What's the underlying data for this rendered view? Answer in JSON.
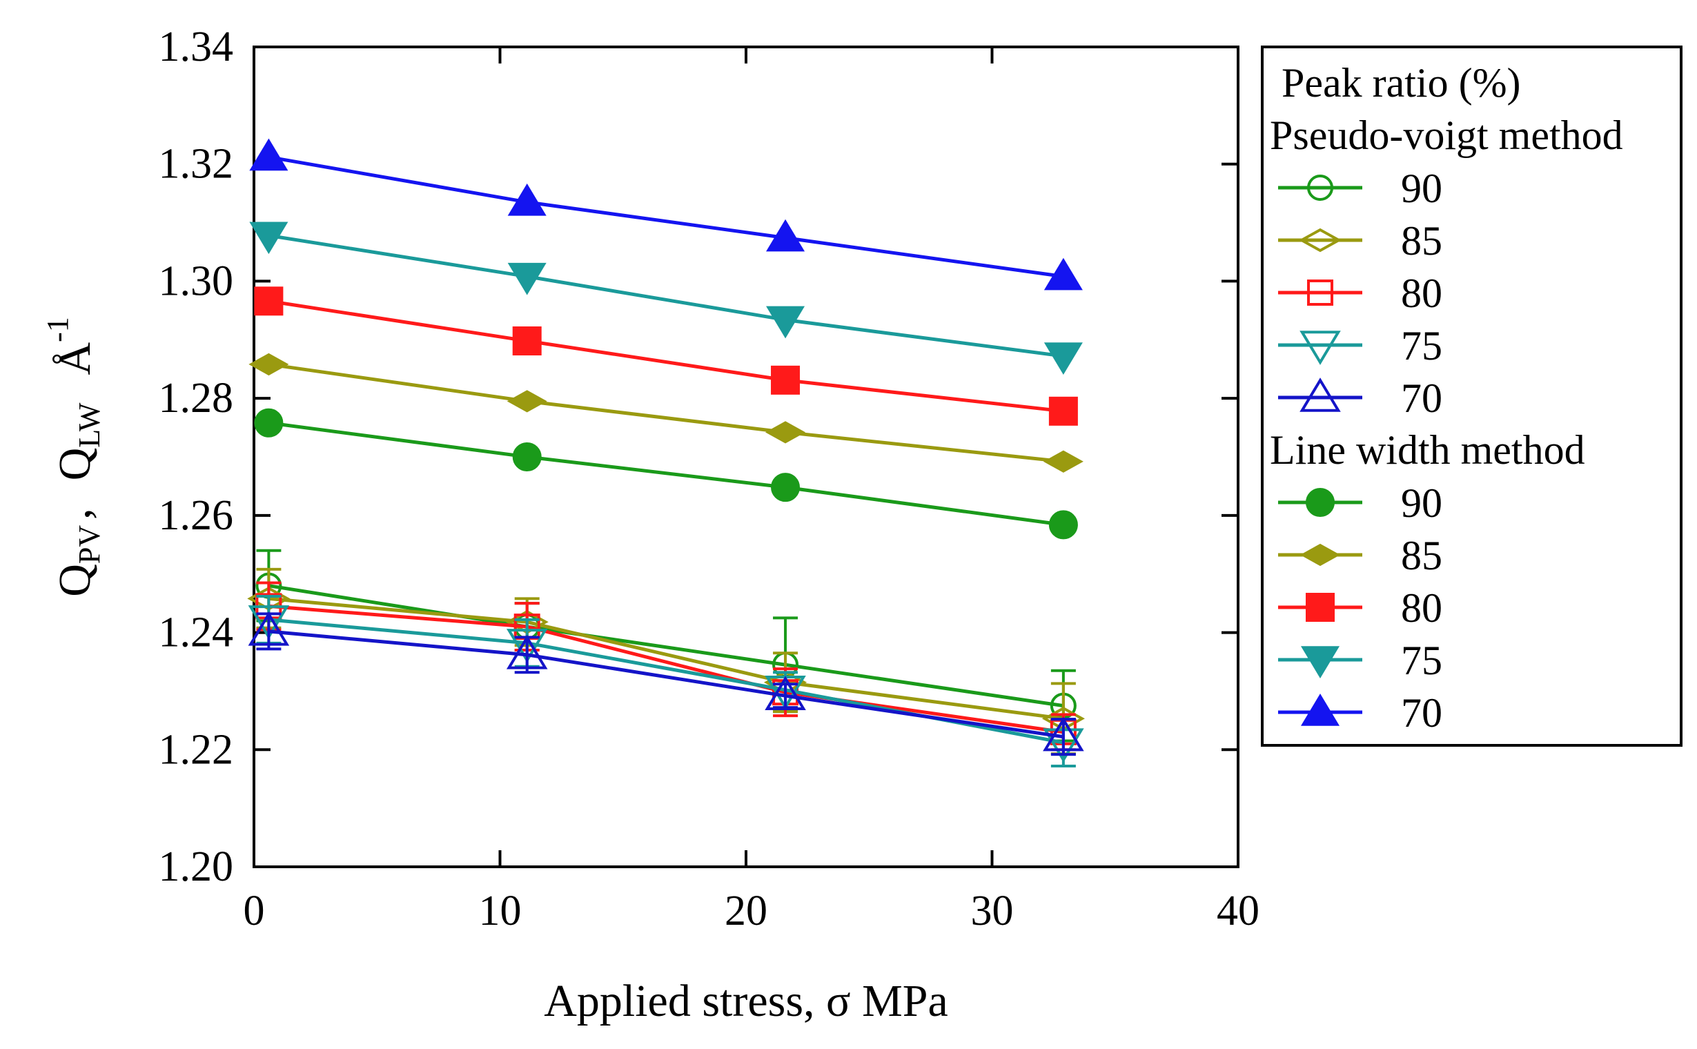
{
  "chart_data": {
    "type": "line",
    "title": "",
    "xlabel": "Applied stress, σ MPa",
    "ylabel": {
      "q1": "Q",
      "q1_sub": "PV",
      "comma": ",",
      "q2": "Q",
      "q2_sub": "LW",
      "unit": "Å",
      "unit_sup": "-1"
    },
    "xlim": [
      0,
      40
    ],
    "ylim": [
      1.2,
      1.34
    ],
    "xticks": [
      0,
      10,
      20,
      30,
      40
    ],
    "xtick_labels": [
      "0",
      "10",
      "20",
      "30",
      "40"
    ],
    "yticks": [
      1.2,
      1.22,
      1.24,
      1.26,
      1.28,
      1.3,
      1.32,
      1.34
    ],
    "ytick_labels": [
      "1.20",
      "1.22",
      "1.24",
      "1.26",
      "1.28",
      "1.30",
      "1.32",
      "1.34"
    ],
    "grid": false,
    "legend_position": "right-outside",
    "x": [
      0.6,
      11.1,
      21.6,
      32.9
    ],
    "legend": {
      "title": "Peak ratio (%)",
      "group1": "Pseudo-voigt method",
      "group2": "Line width method"
    },
    "series": [
      {
        "name": "90",
        "method": "Pseudo-voigt method",
        "marker": "circle-open",
        "color": "#1a9a1a",
        "values": [
          1.248,
          1.241,
          1.2345,
          1.2275
        ],
        "errors": [
          0.006,
          0.004,
          0.008,
          0.006
        ]
      },
      {
        "name": "85",
        "method": "Pseudo-voigt method",
        "marker": "diamond-open",
        "color": "#9a9a10",
        "values": [
          1.2458,
          1.2418,
          1.2315,
          1.2253
        ],
        "errors": [
          0.005,
          0.004,
          0.005,
          0.006
        ]
      },
      {
        "name": "80",
        "method": "Pseudo-voigt method",
        "marker": "square-open",
        "color": "#ff1a1a",
        "values": [
          1.2445,
          1.241,
          1.2298,
          1.223
        ],
        "errors": [
          0.004,
          0.004,
          0.004,
          0.003
        ]
      },
      {
        "name": "75",
        "method": "Pseudo-voigt method",
        "marker": "triangle-down-open",
        "color": "#1a9a9a",
        "values": [
          1.2422,
          1.2382,
          1.2302,
          1.2212
        ],
        "errors": [
          0.004,
          0.004,
          0.003,
          0.004
        ]
      },
      {
        "name": "70",
        "method": "Pseudo-voigt method",
        "marker": "triangle-up-open",
        "color": "#1414c8",
        "values": [
          1.2402,
          1.2362,
          1.2292,
          1.2222
        ],
        "errors": [
          0.003,
          0.003,
          0.002,
          0.003
        ]
      },
      {
        "name": "90",
        "method": "Line width method",
        "marker": "circle",
        "color": "#1a9a1a",
        "values": [
          1.2758,
          1.27,
          1.2648,
          1.2584
        ],
        "errors": []
      },
      {
        "name": "85",
        "method": "Line width method",
        "marker": "diamond",
        "color": "#9a9a10",
        "values": [
          1.2858,
          1.2795,
          1.2742,
          1.2692
        ],
        "errors": []
      },
      {
        "name": "80",
        "method": "Line width method",
        "marker": "square",
        "color": "#ff1a1a",
        "values": [
          1.2966,
          1.2898,
          1.2831,
          1.2778
        ],
        "errors": []
      },
      {
        "name": "75",
        "method": "Line width method",
        "marker": "triangle-down",
        "color": "#1a9a9a",
        "values": [
          1.3078,
          1.3008,
          1.2934,
          1.2872
        ],
        "errors": []
      },
      {
        "name": "70",
        "method": "Line width method",
        "marker": "triangle-up",
        "color": "#1414f0",
        "values": [
          1.3212,
          1.3135,
          1.3074,
          1.3008
        ],
        "errors": []
      }
    ]
  }
}
